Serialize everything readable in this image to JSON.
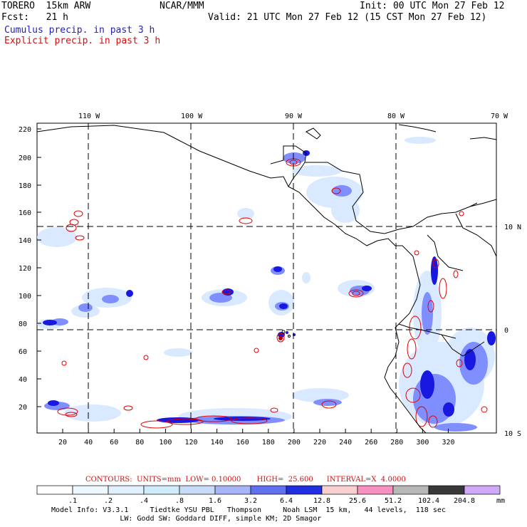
{
  "header": {
    "model": "TORERO  15km ARW",
    "org": "NCAR/MMM",
    "init": "Init: 00 UTC Mon 27 Feb 12",
    "fcst": "Fcst:   21 h",
    "valid": "Valid: 21 UTC Mon 27 Feb 12 (15 CST Mon 27 Feb 12)",
    "field1": "Cumulus precip. in past 3 h",
    "field2": "Explicit precip. in past 3 h"
  },
  "map": {
    "top_lon_labels": [
      "110 W",
      "100 W",
      "90 W",
      "80 W",
      "70 W"
    ],
    "right_lat_labels": [
      "10 N",
      "0",
      "10 S"
    ],
    "y_ticks": [
      "220",
      "200",
      "180",
      "160",
      "140",
      "120",
      "100",
      "80",
      "60",
      "40",
      "20"
    ],
    "x_ticks": [
      "20",
      "40",
      "60",
      "80",
      "100",
      "120",
      "140",
      "160",
      "180",
      "200",
      "220",
      "240",
      "260",
      "280",
      "300",
      "320"
    ],
    "colors": {
      "coast": "#000000",
      "cumulus_light": "#d8e8ff",
      "cumulus_mid": "#7f8fff",
      "cumulus_dark": "#1818e0",
      "explicit": "#e00000",
      "explicit_fill": "#ffc8d8"
    }
  },
  "contours_line": "CONTOURS:  UNITS=mm  LOW= 0.10000       HIGH=  25.600      INTERVAL=X  4.0000",
  "colorbar": {
    "labels": [
      ".1",
      ".2",
      ".4",
      ".8",
      "1.6",
      "3.2",
      "6.4",
      "12.8",
      "25.6",
      "51.2",
      "102.4",
      "204.8"
    ],
    "unit": "mm",
    "colors": [
      "#ffffff",
      "#f0f8ff",
      "#e0f0ff",
      "#d0ecfa",
      "#c8dcf8",
      "#a8b4f8",
      "#6070f0",
      "#2030e0",
      "#f8d0d0",
      "#f890c0",
      "#b8b8b8",
      "#383838",
      "#d0a8f8"
    ]
  },
  "footer": {
    "line1": "Model Info: V3.3.1     Tiedtke YSU PBL   Thompson     Noah LSM  15 km,   44 levels,  118 sec",
    "line2": "                LW: Godd SW: Goddard DIFF, simple KM; 2D Smagor"
  }
}
